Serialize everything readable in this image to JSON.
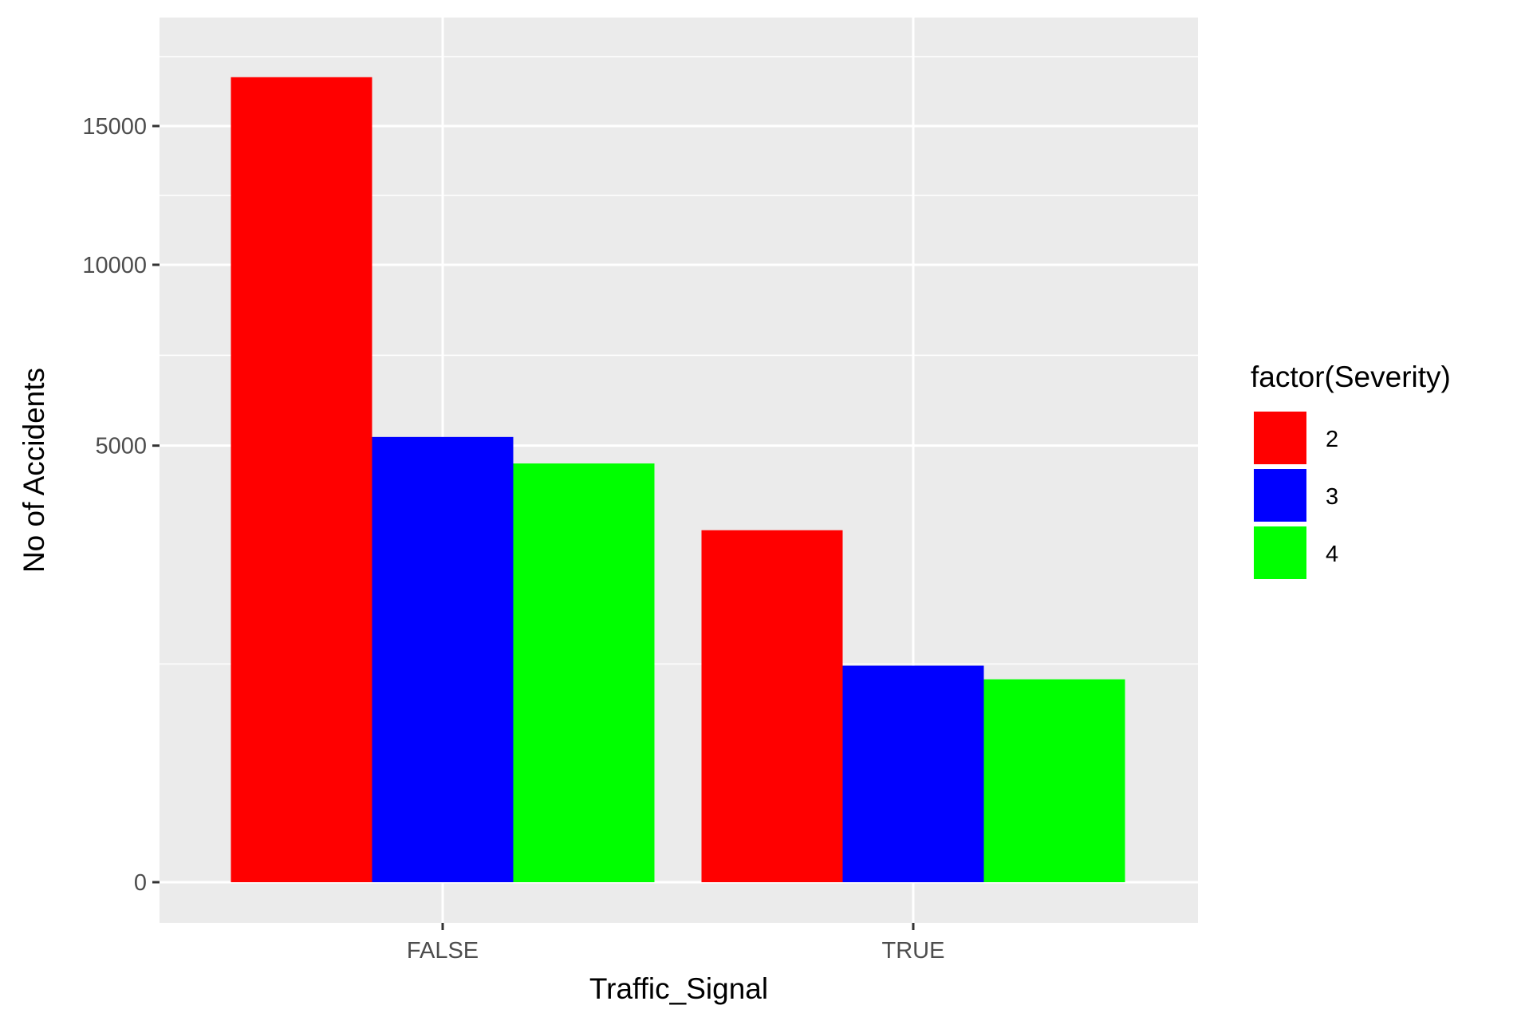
{
  "chart_data": {
    "type": "bar",
    "xlabel": "Traffic_Signal",
    "ylabel": "No of Accidents",
    "categories": [
      "FALSE",
      "TRUE"
    ],
    "series": [
      {
        "name": "2",
        "color": "#ff0000",
        "values": [
          17000,
          3250
        ]
      },
      {
        "name": "3",
        "color": "#0000ff",
        "values": [
          5200,
          1230
        ]
      },
      {
        "name": "4",
        "color": "#00ff00",
        "values": [
          4600,
          1080
        ]
      }
    ],
    "y_ticks": [
      0,
      5000,
      10000,
      15000
    ],
    "y_tick_labels": [
      "0",
      "5000",
      "10000",
      "15000"
    ],
    "y_scale": "sqrt",
    "ylim": [
      0,
      18000
    ],
    "grid": true,
    "legend": {
      "title": "factor(Severity)",
      "placement": "right"
    },
    "panel_color": "#ebebeb",
    "grid_color": "#ffffff"
  }
}
